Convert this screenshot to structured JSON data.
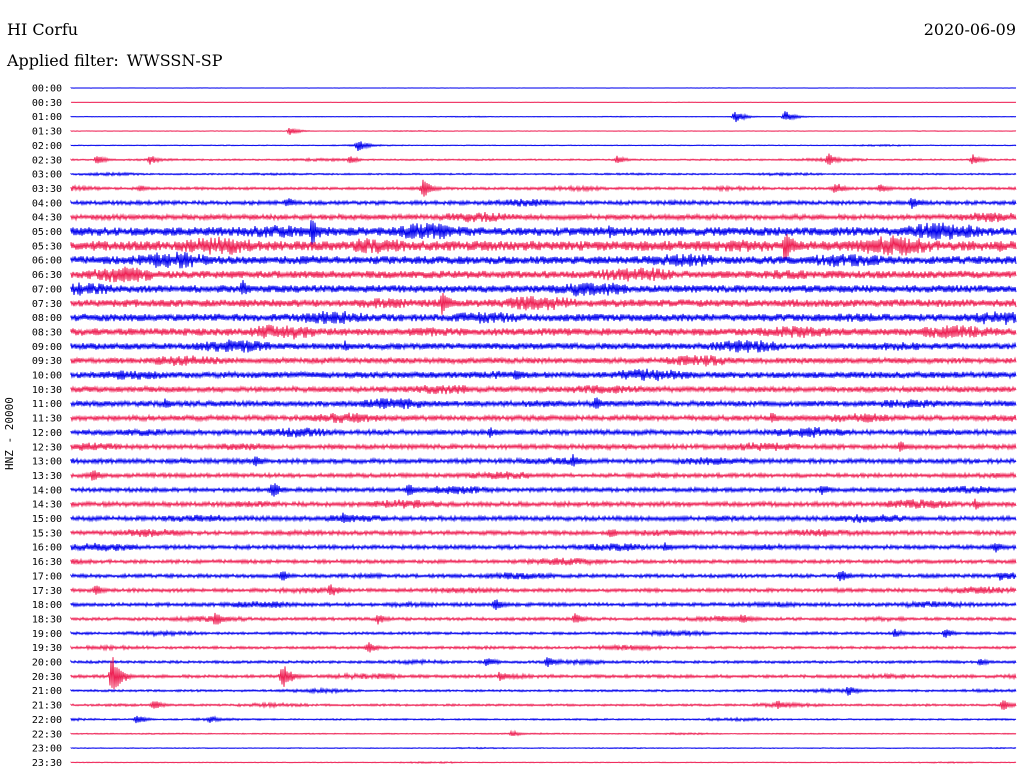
{
  "header": {
    "station": "HI Corfu",
    "date": "2020-06-09",
    "filter_label": "Applied filter:",
    "filter_name": "WWSSN-SP"
  },
  "chart_data": {
    "type": "line",
    "ylabel": "HNZ - 20000",
    "rows": [
      "00:00",
      "00:30",
      "01:00",
      "01:30",
      "02:00",
      "02:30",
      "03:00",
      "03:30",
      "04:00",
      "04:30",
      "05:00",
      "05:30",
      "06:00",
      "06:30",
      "07:00",
      "07:30",
      "08:00",
      "08:30",
      "09:00",
      "09:30",
      "10:00",
      "10:30",
      "11:00",
      "11:30",
      "12:00",
      "12:30",
      "13:00",
      "13:30",
      "14:00",
      "14:30",
      "15:00",
      "15:30",
      "16:00",
      "16:30",
      "17:00",
      "17:30",
      "18:00",
      "18:30",
      "19:00",
      "19:30",
      "20:00",
      "20:30",
      "21:00",
      "21:30",
      "22:00",
      "22:30",
      "23:00",
      "23:30"
    ],
    "colors": [
      "#0000ee",
      "#ee2255"
    ],
    "noise_level": [
      0.1,
      0.1,
      0.2,
      0.2,
      0.3,
      0.6,
      0.6,
      1.0,
      1.5,
      2.0,
      3.5,
      4.0,
      3.2,
      3.0,
      3.0,
      3.0,
      3.0,
      3.0,
      2.5,
      2.2,
      2.5,
      2.2,
      2.2,
      2.0,
      2.0,
      1.8,
      1.8,
      1.6,
      1.6,
      1.8,
      1.8,
      1.6,
      1.6,
      1.4,
      1.4,
      1.4,
      1.4,
      1.2,
      1.0,
      1.0,
      1.0,
      1.2,
      0.8,
      0.8,
      0.6,
      0.4,
      0.3,
      0.3
    ],
    "events": [
      {
        "row": "01:00",
        "x": 735,
        "amplitude": 6
      },
      {
        "row": "01:00",
        "x": 785,
        "amplitude": 6
      },
      {
        "row": "01:30",
        "x": 290,
        "amplitude": 4
      },
      {
        "row": "02:00",
        "x": 358,
        "amplitude": 6
      },
      {
        "row": "02:30",
        "x": 97,
        "amplitude": 5
      },
      {
        "row": "02:30",
        "x": 150,
        "amplitude": 5
      },
      {
        "row": "02:30",
        "x": 350,
        "amplitude": 4
      },
      {
        "row": "02:30",
        "x": 617,
        "amplitude": 4
      },
      {
        "row": "02:30",
        "x": 828,
        "amplitude": 7
      },
      {
        "row": "02:30",
        "x": 973,
        "amplitude": 6
      },
      {
        "row": "03:30",
        "x": 423,
        "amplitude": 10
      },
      {
        "row": "03:30",
        "x": 140,
        "amplitude": 4
      },
      {
        "row": "03:30",
        "x": 835,
        "amplitude": 7
      },
      {
        "row": "03:30",
        "x": 880,
        "amplitude": 5
      },
      {
        "row": "04:00",
        "x": 287,
        "amplitude": 6
      },
      {
        "row": "04:00",
        "x": 912,
        "amplitude": 7
      },
      {
        "row": "05:00",
        "x": 312,
        "amplitude": 16
      },
      {
        "row": "05:00",
        "x": 610,
        "amplitude": 8
      },
      {
        "row": "05:30",
        "x": 785,
        "amplitude": 18
      },
      {
        "row": "05:30",
        "x": 1000,
        "amplitude": 6
      },
      {
        "row": "06:30",
        "x": 125,
        "amplitude": 8
      },
      {
        "row": "07:00",
        "x": 242,
        "amplitude": 10
      },
      {
        "row": "07:30",
        "x": 442,
        "amplitude": 13
      },
      {
        "row": "09:00",
        "x": 345,
        "amplitude": 6
      },
      {
        "row": "10:00",
        "x": 515,
        "amplitude": 7
      },
      {
        "row": "11:00",
        "x": 165,
        "amplitude": 6
      },
      {
        "row": "11:00",
        "x": 595,
        "amplitude": 8
      },
      {
        "row": "11:30",
        "x": 772,
        "amplitude": 7
      },
      {
        "row": "11:30",
        "x": 865,
        "amplitude": 6
      },
      {
        "row": "12:00",
        "x": 490,
        "amplitude": 6
      },
      {
        "row": "12:30",
        "x": 900,
        "amplitude": 6
      },
      {
        "row": "13:00",
        "x": 255,
        "amplitude": 7
      },
      {
        "row": "13:00",
        "x": 573,
        "amplitude": 8
      },
      {
        "row": "13:30",
        "x": 93,
        "amplitude": 7
      },
      {
        "row": "14:00",
        "x": 272,
        "amplitude": 10
      },
      {
        "row": "14:00",
        "x": 408,
        "amplitude": 8
      },
      {
        "row": "14:00",
        "x": 822,
        "amplitude": 7
      },
      {
        "row": "14:30",
        "x": 975,
        "amplitude": 6
      },
      {
        "row": "15:00",
        "x": 343,
        "amplitude": 6
      },
      {
        "row": "15:30",
        "x": 610,
        "amplitude": 6
      },
      {
        "row": "16:00",
        "x": 665,
        "amplitude": 5
      },
      {
        "row": "16:00",
        "x": 995,
        "amplitude": 6
      },
      {
        "row": "17:00",
        "x": 282,
        "amplitude": 6
      },
      {
        "row": "17:00",
        "x": 840,
        "amplitude": 7
      },
      {
        "row": "17:00",
        "x": 1000,
        "amplitude": 5
      },
      {
        "row": "17:30",
        "x": 95,
        "amplitude": 6
      },
      {
        "row": "17:30",
        "x": 330,
        "amplitude": 8
      },
      {
        "row": "18:00",
        "x": 495,
        "amplitude": 7
      },
      {
        "row": "18:30",
        "x": 215,
        "amplitude": 8
      },
      {
        "row": "18:30",
        "x": 378,
        "amplitude": 6
      },
      {
        "row": "18:30",
        "x": 575,
        "amplitude": 7
      },
      {
        "row": "18:30",
        "x": 742,
        "amplitude": 6
      },
      {
        "row": "19:00",
        "x": 895,
        "amplitude": 5
      },
      {
        "row": "19:00",
        "x": 945,
        "amplitude": 5
      },
      {
        "row": "19:30",
        "x": 368,
        "amplitude": 6
      },
      {
        "row": "20:00",
        "x": 487,
        "amplitude": 6
      },
      {
        "row": "20:00",
        "x": 547,
        "amplitude": 6
      },
      {
        "row": "20:00",
        "x": 980,
        "amplitude": 4
      },
      {
        "row": "20:30",
        "x": 112,
        "amplitude": 22
      },
      {
        "row": "20:30",
        "x": 282,
        "amplitude": 15
      },
      {
        "row": "20:30",
        "x": 500,
        "amplitude": 6
      },
      {
        "row": "21:00",
        "x": 848,
        "amplitude": 6
      },
      {
        "row": "21:30",
        "x": 153,
        "amplitude": 6
      },
      {
        "row": "21:30",
        "x": 778,
        "amplitude": 6
      },
      {
        "row": "21:30",
        "x": 1003,
        "amplitude": 6
      },
      {
        "row": "22:00",
        "x": 137,
        "amplitude": 5
      },
      {
        "row": "22:00",
        "x": 210,
        "amplitude": 4
      },
      {
        "row": "22:30",
        "x": 512,
        "amplitude": 3
      }
    ]
  }
}
